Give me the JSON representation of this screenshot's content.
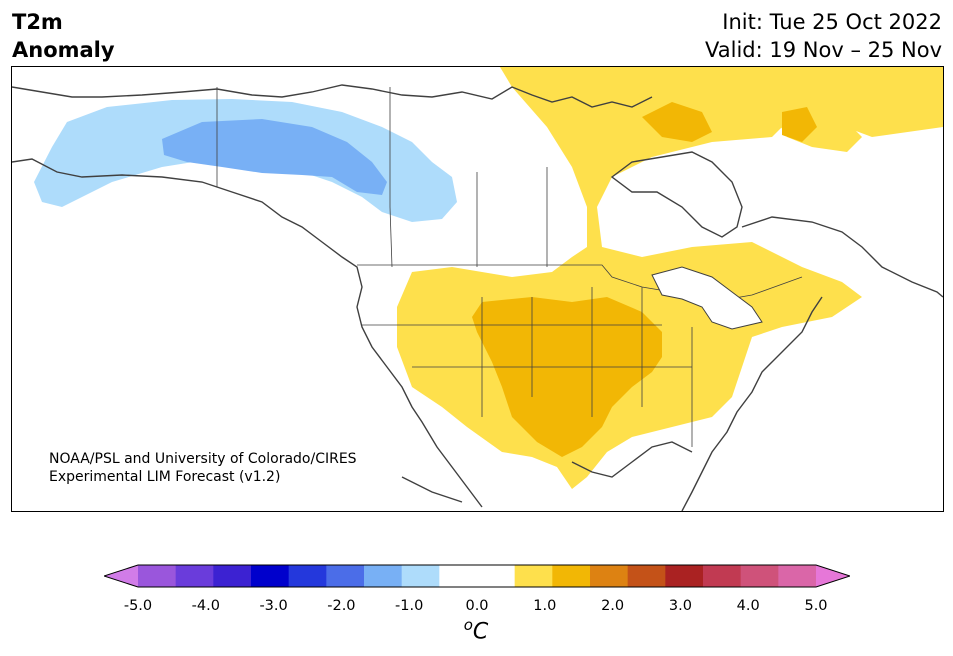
{
  "title": {
    "variable": "T2m",
    "subtitle": "Anomaly",
    "init": "Init: Tue 25 Oct 2022",
    "valid": "Valid: 19 Nov – 25 Nov"
  },
  "credit": {
    "line1": "NOAA/PSL and University of Colorado/CIRES",
    "line2": "Experimental LIM Forecast (v1.2)"
  },
  "colorbar": {
    "unit_prefix": "o",
    "unit": "C",
    "ticks": [
      "-5.0",
      "-4.0",
      "-3.0",
      "-2.0",
      "-1.0",
      "0.0",
      "1.0",
      "2.0",
      "3.0",
      "4.0",
      "5.0"
    ],
    "min": -5.0,
    "max": 5.0,
    "step": 0.5,
    "colors": [
      "#d17ce8",
      "#9a56dc",
      "#6a3cdb",
      "#3c22d2",
      "#0000cc",
      "#2438dc",
      "#4b6de8",
      "#78b0f5",
      "#aedcfb",
      "#ffffff",
      "#ffffff",
      "#fee04c",
      "#f2b705",
      "#dd8212",
      "#c45218",
      "#aa2222",
      "#c13a52",
      "#cf527a",
      "#da66a8",
      "#e677d8"
    ]
  },
  "legend_regions": {
    "cold_anomaly_region": "western Canada / Alaska",
    "warm_anomaly_region": "central & eastern US, eastern Canada"
  }
}
